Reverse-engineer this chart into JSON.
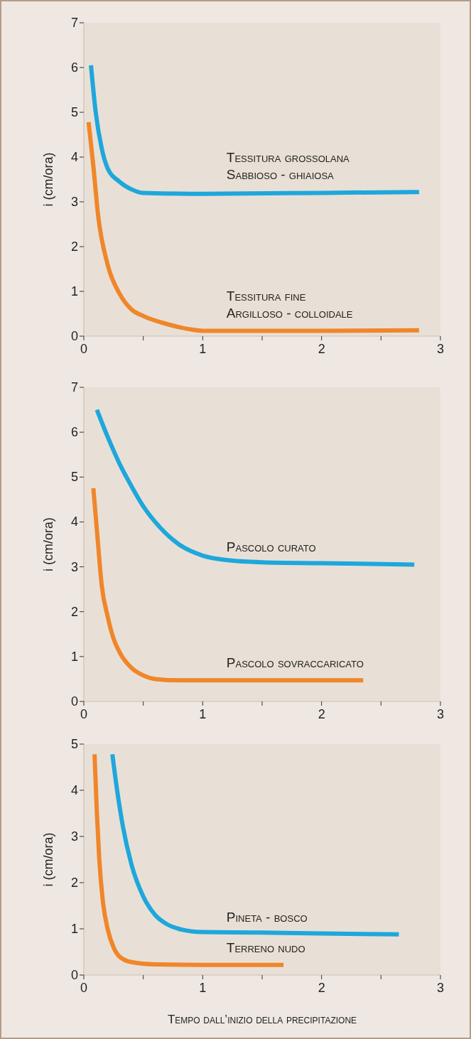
{
  "chart_data": [
    {
      "type": "line",
      "ylabel": "i (cm/ora)",
      "xlim": [
        0,
        3
      ],
      "ylim": [
        0,
        7
      ],
      "xticks": [
        0,
        {
          "value": 0.5,
          "label": null
        },
        1,
        {
          "value": 1.5,
          "label": null
        },
        2,
        {
          "value": 2.5,
          "label": null
        },
        3
      ],
      "yticks": [
        0,
        1,
        2,
        3,
        4,
        5,
        6,
        7
      ],
      "series": [
        {
          "name": "Tessitura grossolana\nSabbioso - ghiaiosa",
          "color": "#1ea7dc",
          "x": [
            0.06,
            0.1,
            0.15,
            0.2,
            0.3,
            0.4,
            0.5,
            1,
            2,
            2.82
          ],
          "values": [
            6.05,
            5.0,
            4.2,
            3.75,
            3.45,
            3.28,
            3.2,
            3.18,
            3.2,
            3.22
          ]
        },
        {
          "name": "Tessitura fine\nArgilloso - colloidale",
          "color": "#f0862a",
          "x": [
            0.04,
            0.08,
            0.12,
            0.2,
            0.3,
            0.4,
            0.5,
            0.7,
            0.9,
            1,
            2,
            2.82
          ],
          "values": [
            4.78,
            3.8,
            2.7,
            1.6,
            0.95,
            0.6,
            0.45,
            0.27,
            0.15,
            0.12,
            0.12,
            0.13
          ]
        }
      ]
    },
    {
      "type": "line",
      "ylabel": "i (cm/ora)",
      "xlim": [
        0,
        3
      ],
      "ylim": [
        0,
        7
      ],
      "xticks": [
        0,
        {
          "value": 0.5,
          "label": null
        },
        1,
        {
          "value": 1.5,
          "label": null
        },
        2,
        {
          "value": 2.5,
          "label": null
        },
        3
      ],
      "yticks": [
        0,
        1,
        2,
        3,
        4,
        5,
        6,
        7
      ],
      "series": [
        {
          "name": "Pascolo curato",
          "color": "#1ea7dc",
          "x": [
            0.11,
            0.2,
            0.3,
            0.4,
            0.5,
            0.6,
            0.8,
            1,
            1.2,
            1.5,
            2,
            2.78
          ],
          "values": [
            6.5,
            5.9,
            5.3,
            4.8,
            4.35,
            4.0,
            3.5,
            3.25,
            3.15,
            3.1,
            3.08,
            3.05
          ]
        },
        {
          "name": "Pascolo sovraccaricato",
          "color": "#f0862a",
          "x": [
            0.08,
            0.12,
            0.15,
            0.2,
            0.25,
            0.3,
            0.4,
            0.5,
            0.6,
            0.8,
            1,
            2.35
          ],
          "values": [
            4.75,
            3.5,
            2.6,
            1.9,
            1.4,
            1.1,
            0.75,
            0.58,
            0.5,
            0.47,
            0.47,
            0.47
          ]
        }
      ]
    },
    {
      "type": "line",
      "ylabel": "i (cm/ora)",
      "xlabel": "Tempo dall’inizio della precipitazione",
      "xlim": [
        0,
        3
      ],
      "ylim": [
        0,
        5
      ],
      "xticks": [
        0,
        {
          "value": 0.5,
          "label": null
        },
        1,
        {
          "value": 1.5,
          "label": null
        },
        2,
        {
          "value": 2.5,
          "label": null
        },
        3
      ],
      "yticks": [
        0,
        1,
        2,
        3,
        4,
        5
      ],
      "series": [
        {
          "name": "Pineta - bosco",
          "color": "#1ea7dc",
          "x": [
            0.24,
            0.28,
            0.33,
            0.4,
            0.5,
            0.6,
            0.7,
            0.8,
            1,
            1.5,
            2,
            2.65
          ],
          "values": [
            4.78,
            4.0,
            3.2,
            2.4,
            1.7,
            1.3,
            1.1,
            1.0,
            0.93,
            0.92,
            0.9,
            0.88
          ]
        },
        {
          "name": "Terreno nudo",
          "color": "#f0862a",
          "x": [
            0.09,
            0.11,
            0.13,
            0.16,
            0.2,
            0.25,
            0.3,
            0.4,
            0.6,
            1,
            1.68
          ],
          "values": [
            4.78,
            3.5,
            2.5,
            1.6,
            1.0,
            0.6,
            0.4,
            0.28,
            0.23,
            0.22,
            0.22
          ]
        }
      ]
    }
  ]
}
